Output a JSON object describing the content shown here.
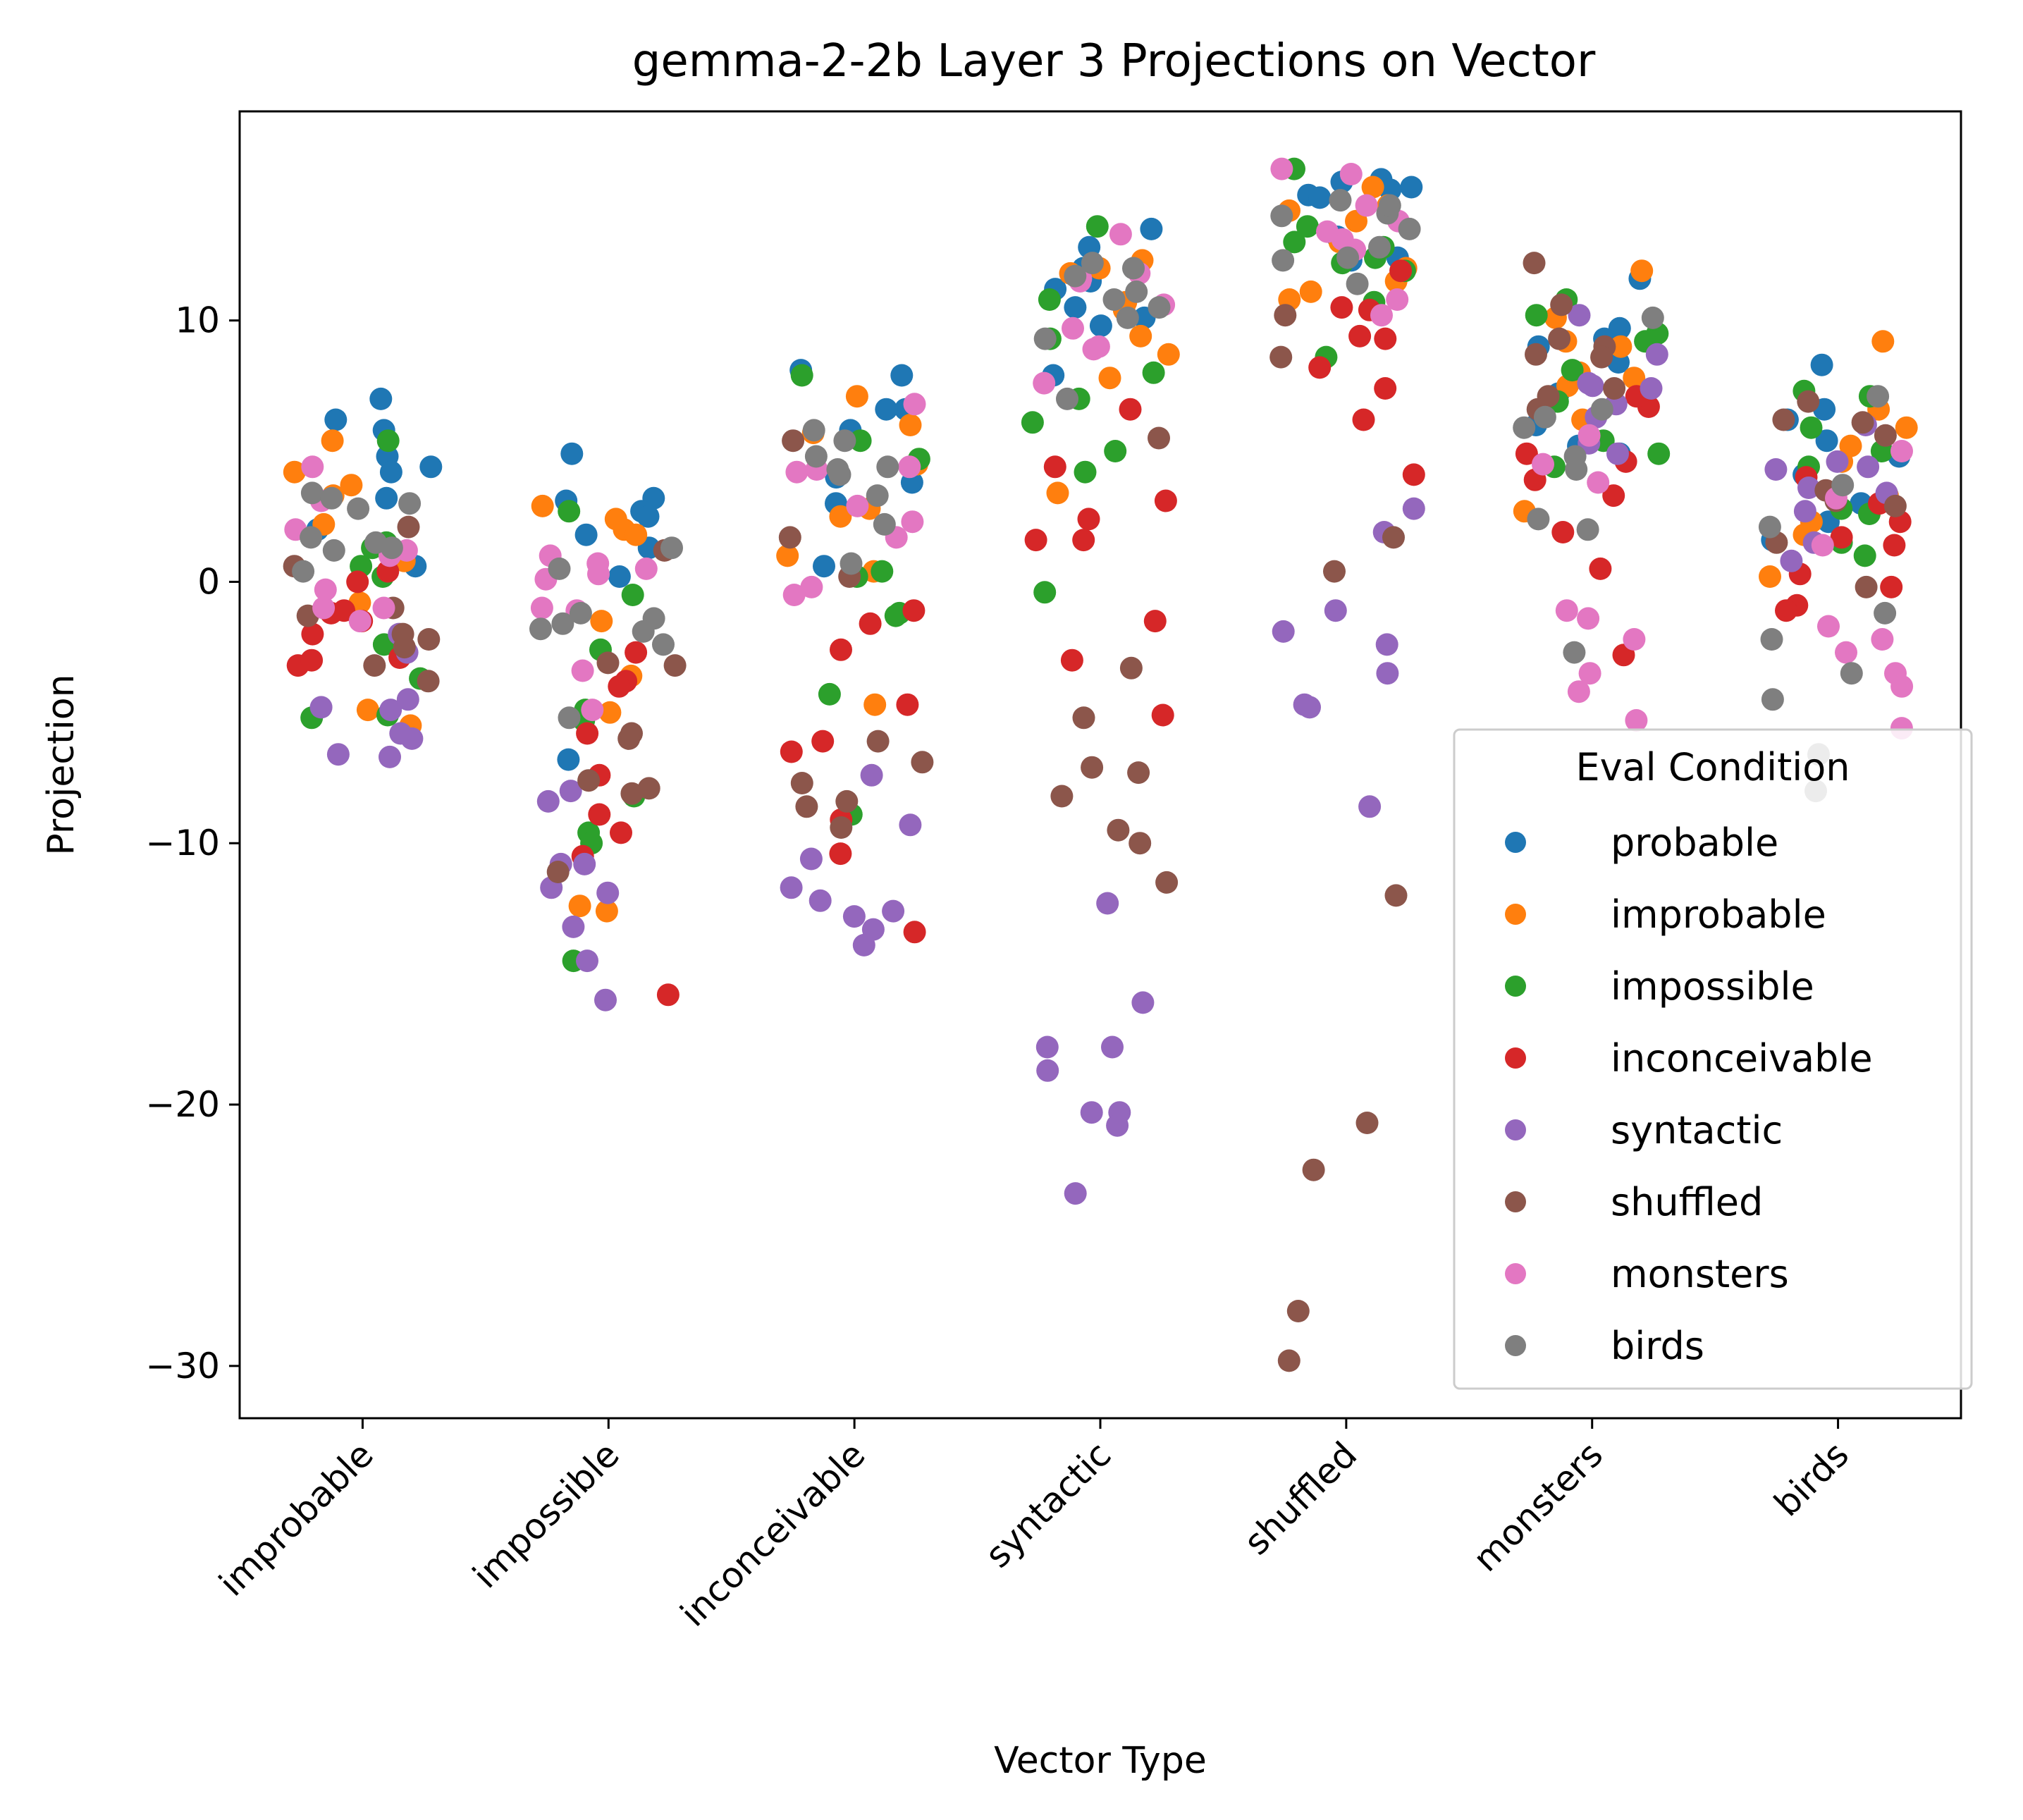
{
  "chart_data": {
    "type": "scatter",
    "title": "gemma-2-2b Layer 3 Projections on Vector",
    "xlabel": "Vector Type",
    "ylabel": "Projection",
    "categories": [
      "improbable",
      "impossible",
      "inconceivable",
      "syntactic",
      "shuffled",
      "monsters",
      "birds"
    ],
    "ylim": [
      -32,
      18
    ],
    "yticks": [
      10,
      0,
      -10,
      -20,
      -30
    ],
    "ytick_labels": [
      "10",
      "0",
      "−10",
      "−20",
      "−30"
    ],
    "grid": false,
    "legend": {
      "title": "Eval Condition",
      "placement": "lower right"
    },
    "series": [
      {
        "name": "probable",
        "color": "#1f77b4",
        "values": [
          [
            5.8,
            6.2,
            7.0,
            4.4,
            4.8,
            3.2,
            2.0,
            0.6,
            4.2
          ],
          [
            3.2,
            2.7,
            1.8,
            1.3,
            3.1,
            0.2,
            4.9,
            -6.8,
            2.5
          ],
          [
            6.6,
            7.9,
            8.1,
            5.8,
            6.6,
            3.0,
            0.6,
            4.0,
            3.8
          ],
          [
            13.5,
            12.8,
            11.5,
            10.1,
            11.2,
            7.9,
            10.5,
            12.0,
            9.8
          ],
          [
            15.1,
            15.3,
            15.4,
            14.8,
            13.2,
            12.4,
            15.0,
            14.7,
            12.3
          ],
          [
            11.6,
            9.7,
            9.0,
            9.3,
            6.0,
            8.4,
            5.2,
            4.9,
            7.2
          ],
          [
            8.3,
            6.6,
            5.4,
            4.8,
            2.3,
            1.6,
            4.1,
            6.2,
            3.0
          ]
        ]
      },
      {
        "name": "improbable",
        "color": "#ff7f0e",
        "values": [
          [
            4.2,
            3.3,
            5.4,
            3.7,
            2.2,
            0.8,
            -0.8,
            -4.9,
            -5.5
          ],
          [
            2.0,
            1.8,
            2.9,
            2.4,
            -1.5,
            -5.0,
            -3.6,
            -12.4,
            -12.6
          ],
          [
            4.5,
            5.7,
            7.1,
            6.0,
            2.8,
            1.0,
            0.4,
            -4.7,
            2.5
          ],
          [
            12.3,
            10.7,
            11.8,
            9.4,
            8.7,
            12.0,
            3.4,
            7.8,
            10.4
          ],
          [
            11.5,
            13.8,
            15.1,
            14.2,
            12.0,
            10.8,
            11.1,
            13.0,
            14.4
          ],
          [
            9.2,
            11.9,
            10.1,
            7.8,
            8.0,
            6.2,
            2.7,
            7.5,
            9.0
          ],
          [
            9.2,
            6.6,
            5.9,
            5.2,
            3.3,
            2.3,
            0.2,
            1.8,
            4.6
          ]
        ]
      },
      {
        "name": "impossible",
        "color": "#2ca02c",
        "values": [
          [
            0.2,
            5.4,
            1.5,
            0.6,
            -2.4,
            -3.7,
            -5.1,
            -5.2,
            1.3
          ],
          [
            2.7,
            -0.5,
            -2.6,
            -5.3,
            -8.2,
            -9.6,
            -10.0,
            -14.5,
            -4.9
          ],
          [
            7.9,
            5.4,
            4.7,
            0.4,
            0.2,
            -1.2,
            -1.3,
            -4.3,
            -8.9
          ],
          [
            13.6,
            9.3,
            8.0,
            7.0,
            6.1,
            5.0,
            4.2,
            -0.4,
            10.8
          ],
          [
            15.8,
            13.0,
            12.8,
            12.4,
            10.7,
            8.6,
            13.6,
            12.2,
            11.9
          ],
          [
            10.8,
            10.2,
            9.2,
            8.1,
            4.9,
            4.4,
            6.9,
            5.4,
            9.5
          ],
          [
            7.3,
            7.1,
            5.9,
            5.0,
            4.4,
            2.8,
            2.6,
            1.5,
            1.0
          ]
        ]
      },
      {
        "name": "inconceivable",
        "color": "#d62728",
        "values": [
          [
            0.4,
            -1.2,
            -2.0,
            -2.9,
            -3.2,
            -3.0,
            -1.5,
            0.0,
            -1.1
          ],
          [
            -2.7,
            -3.8,
            -4.0,
            -5.8,
            -7.4,
            -8.9,
            -9.6,
            -10.5,
            -15.8
          ],
          [
            -1.1,
            -1.6,
            -2.6,
            -4.7,
            -6.1,
            -6.5,
            -9.1,
            -10.4,
            -13.4
          ],
          [
            3.1,
            1.6,
            2.4,
            1.6,
            4.4,
            -1.5,
            -3.0,
            -5.1,
            6.6
          ],
          [
            4.1,
            9.3,
            10.5,
            10.4,
            11.9,
            8.2,
            7.4,
            9.4,
            6.2
          ],
          [
            0.5,
            3.9,
            6.7,
            4.6,
            4.9,
            3.3,
            1.9,
            7.1,
            -2.8
          ],
          [
            2.3,
            1.7,
            -0.2,
            -0.9,
            -1.1,
            0.3,
            1.4,
            3.0,
            4.0
          ]
        ]
      },
      {
        "name": "syntactic",
        "color": "#9467bd",
        "values": [
          [
            -6.6,
            -6.0,
            -5.8,
            -6.7,
            -4.9,
            -4.8,
            -4.5,
            -2.7,
            -2.0
          ],
          [
            -8.0,
            -10.8,
            -11.7,
            -13.2,
            -14.5,
            -16.0,
            -11.9,
            -8.4,
            -10.8
          ],
          [
            -7.4,
            -9.3,
            -10.6,
            -11.7,
            -12.2,
            -12.6,
            -12.8,
            -13.3,
            -13.9
          ],
          [
            -17.8,
            -16.1,
            -20.3,
            -20.3,
            -20.8,
            -23.4,
            -18.7,
            -17.8,
            -12.3
          ],
          [
            1.9,
            -1.1,
            -1.9,
            2.8,
            -2.4,
            -3.5,
            -4.8,
            -4.7,
            -8.6
          ],
          [
            7.4,
            10.2,
            7.6,
            8.7,
            6.8,
            5.3,
            4.9,
            6.3,
            7.5
          ],
          [
            6.0,
            4.4,
            3.6,
            2.7,
            4.3,
            0.8,
            3.4,
            4.6,
            1.5
          ]
        ]
      },
      {
        "name": "shuffled",
        "color": "#8c564b",
        "values": [
          [
            0.6,
            -1.3,
            -2.2,
            -2.5,
            -3.2,
            -3.8,
            -2.0,
            -1.0,
            2.1
          ],
          [
            -3.2,
            -6.0,
            -8.1,
            -11.1,
            -7.9,
            -7.6,
            -5.8,
            -3.1,
            1.2
          ],
          [
            0.2,
            1.7,
            -6.1,
            -7.7,
            -8.6,
            -6.9,
            -9.4,
            -8.4,
            5.4
          ],
          [
            5.5,
            -7.1,
            -9.5,
            -11.5,
            -10.0,
            -7.3,
            -5.2,
            -8.2,
            -3.3
          ],
          [
            10.2,
            8.6,
            1.7,
            0.4,
            -12.0,
            -20.7,
            -22.5,
            -27.9,
            -29.8
          ],
          [
            9.0,
            8.6,
            7.4,
            12.2,
            10.6,
            9.3,
            8.7,
            7.1,
            6.6
          ],
          [
            6.9,
            5.6,
            6.2,
            3.1,
            2.9,
            1.5,
            -0.2,
            6.1,
            3.5
          ]
        ]
      },
      {
        "name": "monsters",
        "color": "#e377c2",
        "values": [
          [
            2.0,
            4.4,
            3.1,
            1.0,
            1.2,
            -1.0,
            -1.0,
            -1.5,
            -0.3
          ],
          [
            0.5,
            -1.0,
            -1.1,
            -3.4,
            -4.9,
            0.7,
            0.3,
            1.0,
            0.1
          ],
          [
            4.4,
            4.2,
            2.9,
            6.8,
            1.7,
            -0.2,
            -0.5,
            4.3,
            2.3
          ],
          [
            11.8,
            11.5,
            10.6,
            9.7,
            7.6,
            11.6,
            13.3,
            9.0,
            8.9
          ],
          [
            13.1,
            14.4,
            15.6,
            15.8,
            12.7,
            13.8,
            10.2,
            10.8,
            13.4
          ],
          [
            5.6,
            4.5,
            3.8,
            -1.1,
            -1.4,
            -2.2,
            -3.5,
            -4.2,
            -5.3
          ],
          [
            5.0,
            3.2,
            1.4,
            -1.7,
            -2.2,
            -2.7,
            -3.5,
            -4.0,
            -5.6
          ]
        ]
      },
      {
        "name": "birds",
        "color": "#7f7f7f",
        "values": [
          [
            1.7,
            1.5,
            1.3,
            1.2,
            2.8,
            3.4,
            3.0,
            3.2,
            0.4
          ],
          [
            0.5,
            -1.4,
            -1.6,
            -1.8,
            -1.9,
            -1.2,
            -2.4,
            -5.2,
            1.3
          ],
          [
            4.3,
            4.8,
            5.4,
            5.8,
            4.1,
            2.2,
            0.7,
            4.4,
            3.3
          ],
          [
            10.1,
            10.5,
            11.1,
            11.7,
            12.0,
            9.3,
            10.8,
            7.0,
            12.2
          ],
          [
            14.0,
            13.5,
            12.4,
            14.1,
            14.4,
            14.6,
            12.8,
            11.4,
            12.3
          ],
          [
            10.1,
            6.3,
            5.9,
            4.8,
            4.3,
            2.4,
            -2.7,
            2.0,
            6.6
          ],
          [
            7.1,
            3.7,
            2.1,
            -1.2,
            -2.2,
            -3.5,
            -4.5,
            -6.6,
            -8.0
          ]
        ]
      }
    ]
  }
}
